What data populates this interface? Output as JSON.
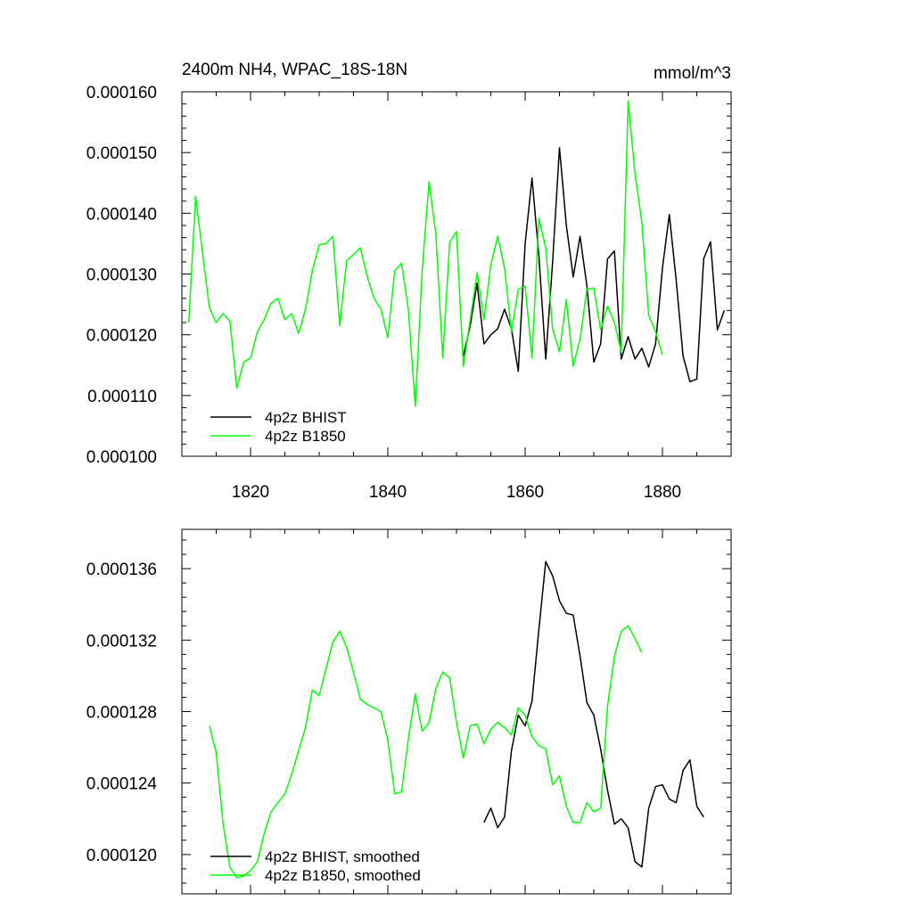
{
  "chart_data": [
    {
      "type": "line",
      "title_left": "2400m NH4, WPAC_18S-18N",
      "title_right": "mmol/m^3",
      "xlim": [
        1810,
        1890
      ],
      "ylim": [
        0.0001,
        0.00016
      ],
      "x_ticks": [
        1820,
        1840,
        1860,
        1880
      ],
      "x_tick_labels": [
        "1820",
        "1840",
        "1860",
        "1880"
      ],
      "y_ticks": [
        0.0001,
        0.00011,
        0.00012,
        0.00013,
        0.00014,
        0.00015,
        0.00016
      ],
      "y_tick_labels": [
        "0.000100",
        "0.000110",
        "0.000120",
        "0.000130",
        "0.000140",
        "0.000150",
        "0.000160"
      ],
      "legend_position": "bottom-left",
      "series": [
        {
          "name": "4p2z BHIST",
          "color": "#000000",
          "x": [
            1851,
            1852,
            1853,
            1854,
            1855,
            1856,
            1857,
            1858,
            1859,
            1860,
            1861,
            1862,
            1863,
            1864,
            1865,
            1866,
            1867,
            1868,
            1869,
            1870,
            1871,
            1872,
            1873,
            1874,
            1875,
            1876,
            1877,
            1878,
            1879,
            1880,
            1881,
            1882,
            1883,
            1884,
            1885,
            1886,
            1887,
            1888,
            1889
          ],
          "y": [
            0.0001165,
            0.0001215,
            0.0001285,
            0.0001185,
            0.00012,
            0.000121,
            0.0001242,
            0.000121,
            0.000114,
            0.000135,
            0.0001458,
            0.000133,
            0.000116,
            0.000132,
            0.0001508,
            0.000138,
            0.0001295,
            0.0001362,
            0.000128,
            0.0001155,
            0.0001185,
            0.0001325,
            0.0001338,
            0.000116,
            0.0001197,
            0.000116,
            0.0001178,
            0.0001147,
            0.0001185,
            0.000131,
            0.0001398,
            0.000129,
            0.0001165,
            0.0001123,
            0.0001127,
            0.0001325,
            0.0001353,
            0.0001208,
            0.000124
          ]
        },
        {
          "name": "4p2z B1850",
          "color": "#00ff00",
          "x": [
            1811,
            1812,
            1813,
            1814,
            1815,
            1816,
            1817,
            1818,
            1819,
            1820,
            1821,
            1822,
            1823,
            1824,
            1825,
            1826,
            1827,
            1828,
            1829,
            1830,
            1831,
            1832,
            1833,
            1834,
            1835,
            1836,
            1837,
            1838,
            1839,
            1840,
            1841,
            1842,
            1843,
            1844,
            1845,
            1846,
            1847,
            1848,
            1849,
            1850,
            1851,
            1852,
            1853,
            1854,
            1855,
            1856,
            1857,
            1858,
            1859,
            1860,
            1861,
            1862,
            1863,
            1864,
            1865,
            1866,
            1867,
            1868,
            1869,
            1870,
            1871,
            1872,
            1873,
            1874,
            1875,
            1876,
            1877,
            1878,
            1879,
            1880
          ],
          "y": [
            0.000122,
            0.0001428,
            0.0001335,
            0.0001245,
            0.000122,
            0.0001235,
            0.0001222,
            0.0001112,
            0.0001155,
            0.0001162,
            0.0001205,
            0.0001225,
            0.0001252,
            0.000126,
            0.0001225,
            0.0001235,
            0.0001202,
            0.0001242,
            0.0001305,
            0.0001348,
            0.000135,
            0.0001362,
            0.0001215,
            0.0001322,
            0.0001332,
            0.0001343,
            0.0001295,
            0.000126,
            0.0001242,
            0.0001195,
            0.0001305,
            0.0001318,
            0.000124,
            0.0001082,
            0.0001305,
            0.0001452,
            0.0001365,
            0.0001162,
            0.0001352,
            0.000137,
            0.0001148,
            0.0001225,
            0.0001302,
            0.0001225,
            0.0001315,
            0.0001362,
            0.000131,
            0.0001205,
            0.0001275,
            0.000128,
            0.0001162,
            0.0001392,
            0.0001343,
            0.000121,
            0.0001172,
            0.0001258,
            0.0001148,
            0.0001193,
            0.0001275,
            0.0001277,
            0.0001208,
            0.0001247,
            0.000122,
            0.0001172,
            0.0001585,
            0.0001465,
            0.0001385,
            0.0001232,
            0.0001205,
            0.0001167
          ]
        }
      ]
    },
    {
      "type": "line",
      "xlim": [
        1810,
        1890
      ],
      "ylim": [
        0.0001178,
        0.0001382
      ],
      "x_ticks": [
        1820,
        1840,
        1860,
        1880
      ],
      "x_tick_labels": [],
      "y_ticks": [
        0.00012,
        0.000124,
        0.000128,
        0.000132,
        0.000136
      ],
      "y_tick_labels": [
        "0.000120",
        "0.000124",
        "0.000128",
        "0.000132",
        "0.000136"
      ],
      "legend_position": "bottom-left",
      "series": [
        {
          "name": "4p2z BHIST, smoothed",
          "color": "#000000",
          "x": [
            1854,
            1855,
            1856,
            1857,
            1858,
            1859,
            1860,
            1861,
            1862,
            1863,
            1864,
            1865,
            1866,
            1867,
            1868,
            1869,
            1870,
            1871,
            1872,
            1873,
            1874,
            1875,
            1876,
            1877,
            1878,
            1879,
            1880,
            1881,
            1882,
            1883,
            1884,
            1885,
            1886
          ],
          "y": [
            0.0001218,
            0.0001226,
            0.0001215,
            0.0001221,
            0.0001258,
            0.0001278,
            0.0001272,
            0.0001286,
            0.0001326,
            0.0001364,
            0.0001356,
            0.0001342,
            0.0001335,
            0.0001334,
            0.0001311,
            0.0001285,
            0.0001278,
            0.0001259,
            0.0001236,
            0.0001217,
            0.000122,
            0.0001215,
            0.0001196,
            0.0001193,
            0.0001226,
            0.0001238,
            0.0001239,
            0.0001231,
            0.0001229,
            0.0001247,
            0.0001253,
            0.0001227,
            0.0001221
          ]
        },
        {
          "name": "4p2z B1850, smoothed",
          "color": "#00ff00",
          "x": [
            1814,
            1815,
            1816,
            1817,
            1818,
            1819,
            1820,
            1821,
            1822,
            1823,
            1824,
            1825,
            1826,
            1827,
            1828,
            1829,
            1830,
            1831,
            1832,
            1833,
            1834,
            1835,
            1836,
            1837,
            1838,
            1839,
            1840,
            1841,
            1842,
            1843,
            1844,
            1845,
            1846,
            1847,
            1848,
            1849,
            1850,
            1851,
            1852,
            1853,
            1854,
            1855,
            1856,
            1857,
            1858,
            1859,
            1860,
            1861,
            1862,
            1863,
            1864,
            1865,
            1866,
            1867,
            1868,
            1869,
            1870,
            1871,
            1872,
            1873,
            1874,
            1875,
            1876,
            1877
          ],
          "y": [
            0.0001272,
            0.0001257,
            0.0001217,
            0.0001193,
            0.0001187,
            0.0001188,
            0.0001191,
            0.0001196,
            0.0001212,
            0.0001224,
            0.0001229,
            0.0001234,
            0.0001245,
            0.0001258,
            0.0001271,
            0.0001292,
            0.0001289,
            0.0001304,
            0.0001319,
            0.0001325,
            0.0001316,
            0.0001302,
            0.0001287,
            0.0001284,
            0.0001282,
            0.000128,
            0.0001264,
            0.0001234,
            0.0001235,
            0.0001265,
            0.000129,
            0.0001269,
            0.0001274,
            0.0001293,
            0.0001302,
            0.0001299,
            0.0001274,
            0.0001254,
            0.0001272,
            0.0001273,
            0.0001262,
            0.000127,
            0.0001274,
            0.0001271,
            0.0001267,
            0.0001282,
            0.0001278,
            0.0001266,
            0.0001261,
            0.0001259,
            0.0001239,
            0.0001244,
            0.0001227,
            0.0001218,
            0.0001218,
            0.0001229,
            0.0001224,
            0.0001226,
            0.0001283,
            0.0001311,
            0.0001325,
            0.0001328,
            0.0001321,
            0.0001313
          ]
        }
      ]
    }
  ]
}
